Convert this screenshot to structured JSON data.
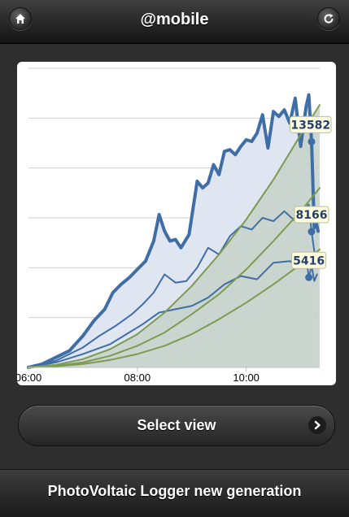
{
  "header": {
    "title": "@mobile",
    "left_icon": "home-icon",
    "right_icon": "refresh-icon"
  },
  "footer": {
    "title": "PhotoVoltaic Logger new generation"
  },
  "select_view": {
    "label": "Select view",
    "icon": "chevron-right-icon"
  },
  "colors": {
    "series_blue": "#3f6ea6",
    "fill_blue": "#dfe5f1",
    "series_green": "#7b9c50",
    "fill_green": "#c9d3cc",
    "label_bg": "#fffde0"
  },
  "chart_data": {
    "type": "line",
    "x_tick_labels": [
      "06:00",
      "08:00",
      "10:00"
    ],
    "xlim_hours": [
      6.0,
      11.35
    ],
    "ylim": [
      0,
      18000
    ],
    "grid": true,
    "series": [
      {
        "style": "thick-blue-area",
        "t": [
          6.0,
          6.25,
          6.5,
          6.75,
          7.0,
          7.2,
          7.4,
          7.55,
          7.7,
          7.85,
          8.0,
          8.15,
          8.3,
          8.4,
          8.5,
          8.6,
          8.7,
          8.8,
          8.95,
          9.1,
          9.2,
          9.3,
          9.4,
          9.5,
          9.6,
          9.7,
          9.8,
          9.9,
          10.0,
          10.1,
          10.2,
          10.3,
          10.4,
          10.5,
          10.6,
          10.7,
          10.8,
          10.9,
          11.0,
          11.1,
          11.15,
          11.2,
          11.25,
          11.28,
          11.32
        ],
        "values": [
          0,
          200,
          600,
          1000,
          1900,
          2800,
          3500,
          4500,
          5000,
          5400,
          5900,
          6400,
          7600,
          9200,
          8200,
          7600,
          7700,
          7200,
          8000,
          11200,
          10800,
          11100,
          12200,
          11600,
          13000,
          13100,
          12800,
          13300,
          13700,
          13600,
          14100,
          15200,
          13200,
          15400,
          15100,
          15500,
          14700,
          16200,
          13300,
          15700,
          16400,
          13582,
          8400,
          8800,
          8200
        ]
      },
      {
        "style": "blue-line",
        "t": [
          6.0,
          6.5,
          7.0,
          7.3,
          7.6,
          7.9,
          8.1,
          8.3,
          8.5,
          8.7,
          8.9,
          9.1,
          9.3,
          9.5,
          9.7,
          9.9,
          10.1,
          10.3,
          10.5,
          10.7,
          10.9,
          11.05,
          11.15,
          11.2,
          11.25,
          11.3
        ],
        "values": [
          0,
          400,
          1200,
          1900,
          2500,
          3200,
          3800,
          4500,
          5600,
          5100,
          5200,
          6000,
          7200,
          6800,
          7900,
          8500,
          8300,
          9000,
          8800,
          9400,
          8800,
          9500,
          9800,
          8166,
          7000,
          6200
        ]
      },
      {
        "style": "blue-line",
        "t": [
          6.0,
          6.5,
          7.0,
          7.5,
          7.8,
          8.1,
          8.4,
          8.7,
          9.0,
          9.3,
          9.6,
          9.9,
          10.2,
          10.5,
          10.8,
          11.0,
          11.1,
          11.15,
          11.2,
          11.25,
          11.3
        ],
        "values": [
          0,
          300,
          800,
          1400,
          2000,
          2600,
          3300,
          3500,
          3700,
          4200,
          5000,
          5500,
          5300,
          6300,
          6400,
          6100,
          6600,
          5416,
          6100,
          5200,
          5600
        ]
      },
      {
        "style": "green-curve",
        "t": [
          6.0,
          6.5,
          7.0,
          7.5,
          8.0,
          8.5,
          9.0,
          9.5,
          10.0,
          10.5,
          11.0,
          11.35
        ],
        "values": [
          0,
          150,
          500,
          1100,
          2000,
          3300,
          4900,
          6800,
          8900,
          11300,
          14000,
          15800
        ]
      },
      {
        "style": "green-curve",
        "t": [
          6.0,
          6.5,
          7.0,
          7.5,
          8.0,
          8.5,
          9.0,
          9.5,
          10.0,
          10.5,
          11.0,
          11.35
        ],
        "values": [
          0,
          100,
          300,
          700,
          1300,
          2100,
          3200,
          4400,
          5900,
          7600,
          9400,
          10800
        ]
      },
      {
        "style": "green-curve",
        "t": [
          6.0,
          6.5,
          7.0,
          7.5,
          8.0,
          8.5,
          9.0,
          9.5,
          10.0,
          10.5,
          11.0,
          11.35
        ],
        "values": [
          0,
          70,
          200,
          450,
          800,
          1300,
          2000,
          2900,
          3900,
          5000,
          6200,
          7100
        ]
      }
    ],
    "peak_labels": [
      {
        "text": "13582",
        "t": 11.2,
        "value": 13582,
        "series": 0
      },
      {
        "text": "8166",
        "t": 11.2,
        "value": 8166,
        "series": 1
      },
      {
        "text": "5416",
        "t": 11.15,
        "value": 5416,
        "series": 2
      }
    ]
  }
}
